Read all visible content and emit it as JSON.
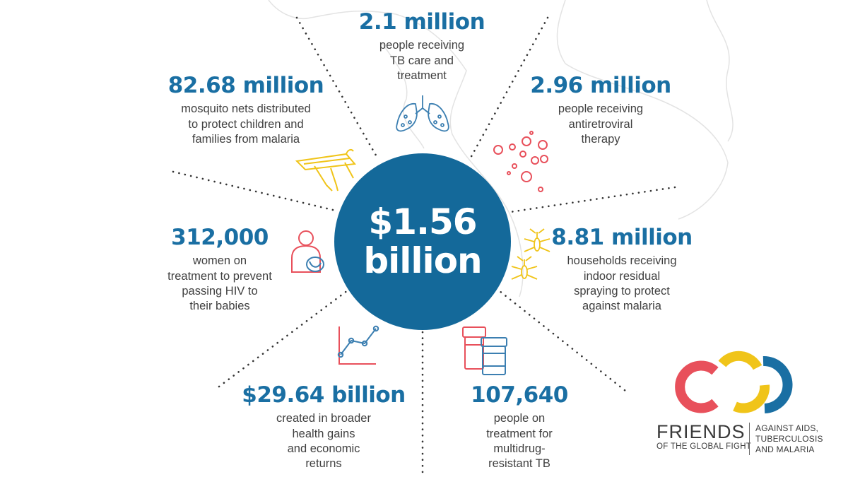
{
  "colors": {
    "blue": "#1a6fa3",
    "circle": "#14699a",
    "red": "#e8505b",
    "yellow": "#f0c419",
    "icon_blue": "#3c7fb1",
    "map": "#e6e6e6"
  },
  "center": {
    "line1": "$1.56",
    "line2": "billion"
  },
  "stats": {
    "tb_care": {
      "number": "2.1 million",
      "lines": [
        "people receiving",
        "TB care and",
        "treatment"
      ]
    },
    "nets": {
      "number": "82.68 million",
      "lines": [
        "mosquito nets distributed",
        "to protect children and",
        "families from malaria"
      ]
    },
    "arv": {
      "number": "2.96 million",
      "lines": [
        "people receiving",
        "antiretroviral",
        "therapy"
      ]
    },
    "pmtct": {
      "number": "312,000",
      "lines": [
        "women on",
        "treatment to prevent",
        "passing HIV to",
        "their babies"
      ]
    },
    "irs": {
      "number": "8.81 million",
      "lines": [
        "households receiving",
        "indoor residual",
        "spraying to protect",
        "against malaria"
      ]
    },
    "econ": {
      "number": "$29.64 billion",
      "lines": [
        "created in broader",
        "health gains",
        "and economic",
        "returns"
      ]
    },
    "mdr": {
      "number": "107,640",
      "lines": [
        "people on",
        "treatment for",
        "multidrug-",
        "resistant TB"
      ]
    }
  },
  "icons": [
    "lungs-icon",
    "virus-icon",
    "mosquito-net-icon",
    "mother-baby-icon",
    "mosquito-icon",
    "line-chart-icon",
    "medicine-bottles-icon"
  ],
  "logo": {
    "name": "FRIENDS",
    "sub": "OF THE GLOBAL FIGHT",
    "tag_lines": [
      "AGAINST AIDS,",
      "TUBERCULOSIS",
      "AND MALARIA"
    ]
  }
}
